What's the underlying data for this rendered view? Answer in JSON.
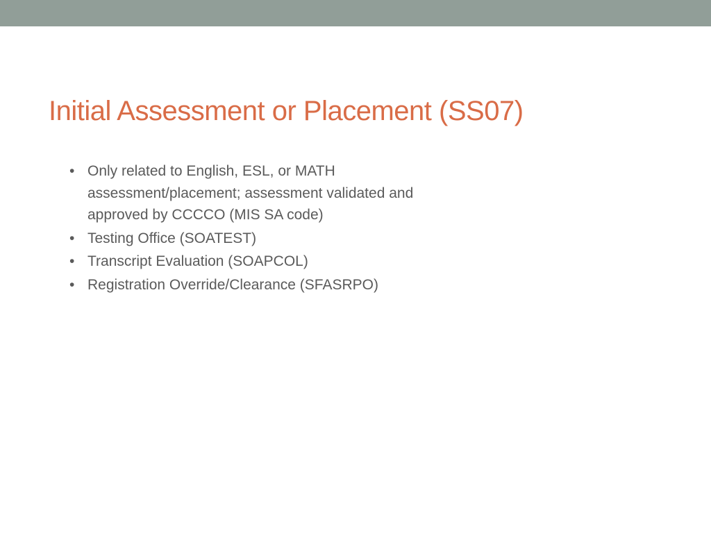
{
  "top_bar_color": "#919e98",
  "title": {
    "text": "Initial Assessment or Placement (SS07)",
    "color": "#d96c47",
    "fontsize": 40
  },
  "bullets": [
    "Only related to English, ESL, or MATH assessment/placement; assessment validated and approved by CCCCO (MIS SA code)",
    "Testing Office (SOATEST)",
    "Transcript Evaluation (SOAPCOL)",
    "Registration Override/Clearance (SFASRPO)"
  ],
  "bullet_text_color": "#5a5a5a",
  "bullet_fontsize": 21,
  "background_color": "#ffffff"
}
